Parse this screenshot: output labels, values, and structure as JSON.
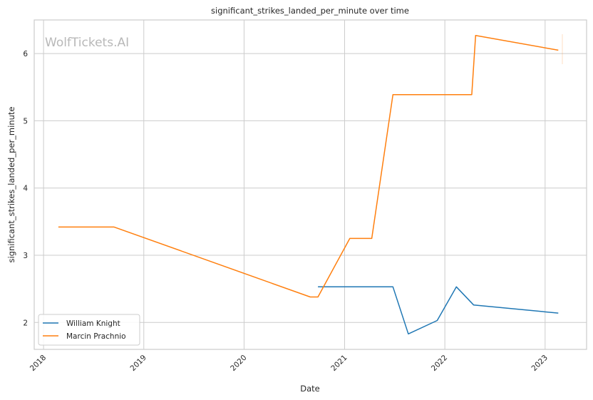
{
  "chart_data": {
    "type": "line",
    "title": "significant_strikes_landed_per_minute over time",
    "xlabel": "Date",
    "ylabel": "significant_strikes_landed_per_minute",
    "watermark": "WolfTickets.AI",
    "xlim": [
      "2017-11-28",
      "2023-06-01"
    ],
    "ylim": [
      1.6,
      6.5
    ],
    "x_ticks": [
      "2018",
      "2019",
      "2020",
      "2021",
      "2022",
      "2023"
    ],
    "y_ticks": [
      "2",
      "3",
      "4",
      "5",
      "6"
    ],
    "grid": true,
    "legend_position": "lower-left",
    "series": [
      {
        "name": "William Knight",
        "color": "#1f77b4",
        "points": [
          {
            "x": "2020-09-26",
            "y": 2.53
          },
          {
            "x": "2021-06-26",
            "y": 2.53
          },
          {
            "x": "2021-08-21",
            "y": 1.83
          },
          {
            "x": "2021-12-04",
            "y": 2.03
          },
          {
            "x": "2022-02-12",
            "y": 2.53
          },
          {
            "x": "2022-04-16",
            "y": 2.26
          },
          {
            "x": "2023-02-18",
            "y": 2.14
          }
        ]
      },
      {
        "name": "Marcin Prachnio",
        "color": "#ff7f0e",
        "points": [
          {
            "x": "2018-02-24",
            "y": 3.42
          },
          {
            "x": "2018-09-15",
            "y": 3.42
          },
          {
            "x": "2020-08-29",
            "y": 2.38
          },
          {
            "x": "2020-09-26",
            "y": 2.38
          },
          {
            "x": "2021-01-20",
            "y": 3.25
          },
          {
            "x": "2021-04-10",
            "y": 3.25
          },
          {
            "x": "2021-06-26",
            "y": 5.39
          },
          {
            "x": "2022-04-09",
            "y": 5.39
          },
          {
            "x": "2022-04-23",
            "y": 6.27
          },
          {
            "x": "2023-02-18",
            "y": 6.05
          }
        ]
      }
    ]
  }
}
